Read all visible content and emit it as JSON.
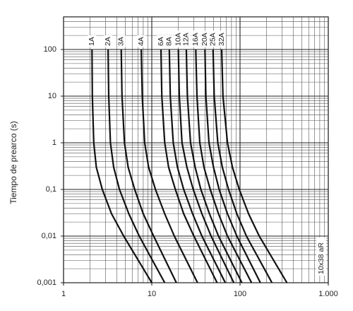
{
  "chart_data": {
    "type": "line",
    "ylabel": "Tiempo de prearco (s)",
    "annotation": "10x38 aR",
    "log_x": true,
    "log_y": true,
    "grid": true,
    "color": "#111111",
    "xlim": [
      1,
      1000
    ],
    "xticks": [
      1,
      10,
      100,
      {
        "value": 1000,
        "label": "1.000"
      }
    ],
    "ylim": [
      0.001,
      500
    ],
    "yticks": [
      {
        "value": 0.001,
        "label": "0,001"
      },
      {
        "value": 0.01,
        "label": "0,01"
      },
      {
        "value": 0.1,
        "label": "0,1"
      },
      1,
      10,
      100
    ],
    "series": [
      {
        "name": "1A",
        "x": [
          2.1,
          2.12,
          2.2,
          2.35,
          2.75,
          3.5,
          4.8,
          10
        ],
        "values": [
          100,
          10,
          1,
          0.3,
          0.1,
          0.03,
          0.01,
          0.001
        ]
      },
      {
        "name": "2A",
        "x": [
          3.2,
          3.25,
          3.4,
          3.7,
          4.3,
          5.5,
          7.2,
          14
        ],
        "values": [
          100,
          10,
          1,
          0.3,
          0.1,
          0.03,
          0.01,
          0.001
        ]
      },
      {
        "name": "3A",
        "x": [
          4.5,
          4.6,
          4.9,
          5.4,
          6.4,
          8,
          10.5,
          19
        ],
        "values": [
          100,
          10,
          1,
          0.3,
          0.1,
          0.03,
          0.01,
          0.001
        ]
      },
      {
        "name": "4A",
        "x": [
          7.6,
          7.8,
          8.3,
          9.2,
          11,
          14,
          18,
          33
        ],
        "values": [
          100,
          10,
          1,
          0.3,
          0.1,
          0.03,
          0.01,
          0.001
        ]
      },
      {
        "name": "6A",
        "x": [
          12.7,
          13,
          14,
          15.5,
          18.5,
          23,
          30,
          55
        ],
        "values": [
          100,
          10,
          1,
          0.3,
          0.1,
          0.03,
          0.01,
          0.001
        ]
      },
      {
        "name": "8A",
        "x": [
          15.8,
          16.2,
          17.5,
          19.5,
          23,
          29,
          37,
          68
        ],
        "values": [
          100,
          10,
          1,
          0.3,
          0.1,
          0.03,
          0.01,
          0.001
        ]
      },
      {
        "name": "10A",
        "x": [
          20,
          20.5,
          22,
          25,
          29.5,
          37,
          47,
          85
        ],
        "values": [
          100,
          10,
          1,
          0.3,
          0.1,
          0.03,
          0.01,
          0.001
        ]
      },
      {
        "name": "12A",
        "x": [
          24.6,
          25.3,
          27.5,
          31,
          36,
          45,
          57,
          105
        ],
        "values": [
          100,
          10,
          1,
          0.3,
          0.1,
          0.03,
          0.01,
          0.001
        ]
      },
      {
        "name": "16A",
        "x": [
          31.5,
          32.5,
          35,
          39,
          46,
          57,
          72,
          135
        ],
        "values": [
          100,
          10,
          1,
          0.3,
          0.1,
          0.03,
          0.01,
          0.001
        ]
      },
      {
        "name": "20A",
        "x": [
          40,
          41,
          44.5,
          50,
          58,
          72,
          92,
          170
        ],
        "values": [
          100,
          10,
          1,
          0.3,
          0.1,
          0.03,
          0.01,
          0.001
        ]
      },
      {
        "name": "25A",
        "x": [
          49.5,
          51,
          56,
          63,
          74,
          92,
          118,
          230
        ],
        "values": [
          100,
          10,
          1,
          0.3,
          0.1,
          0.03,
          0.01,
          0.001
        ]
      },
      {
        "name": "32A",
        "x": [
          62,
          64,
          72,
          82,
          98,
          125,
          165,
          340
        ],
        "values": [
          100,
          10,
          1,
          0.3,
          0.1,
          0.03,
          0.01,
          0.001
        ]
      }
    ]
  }
}
